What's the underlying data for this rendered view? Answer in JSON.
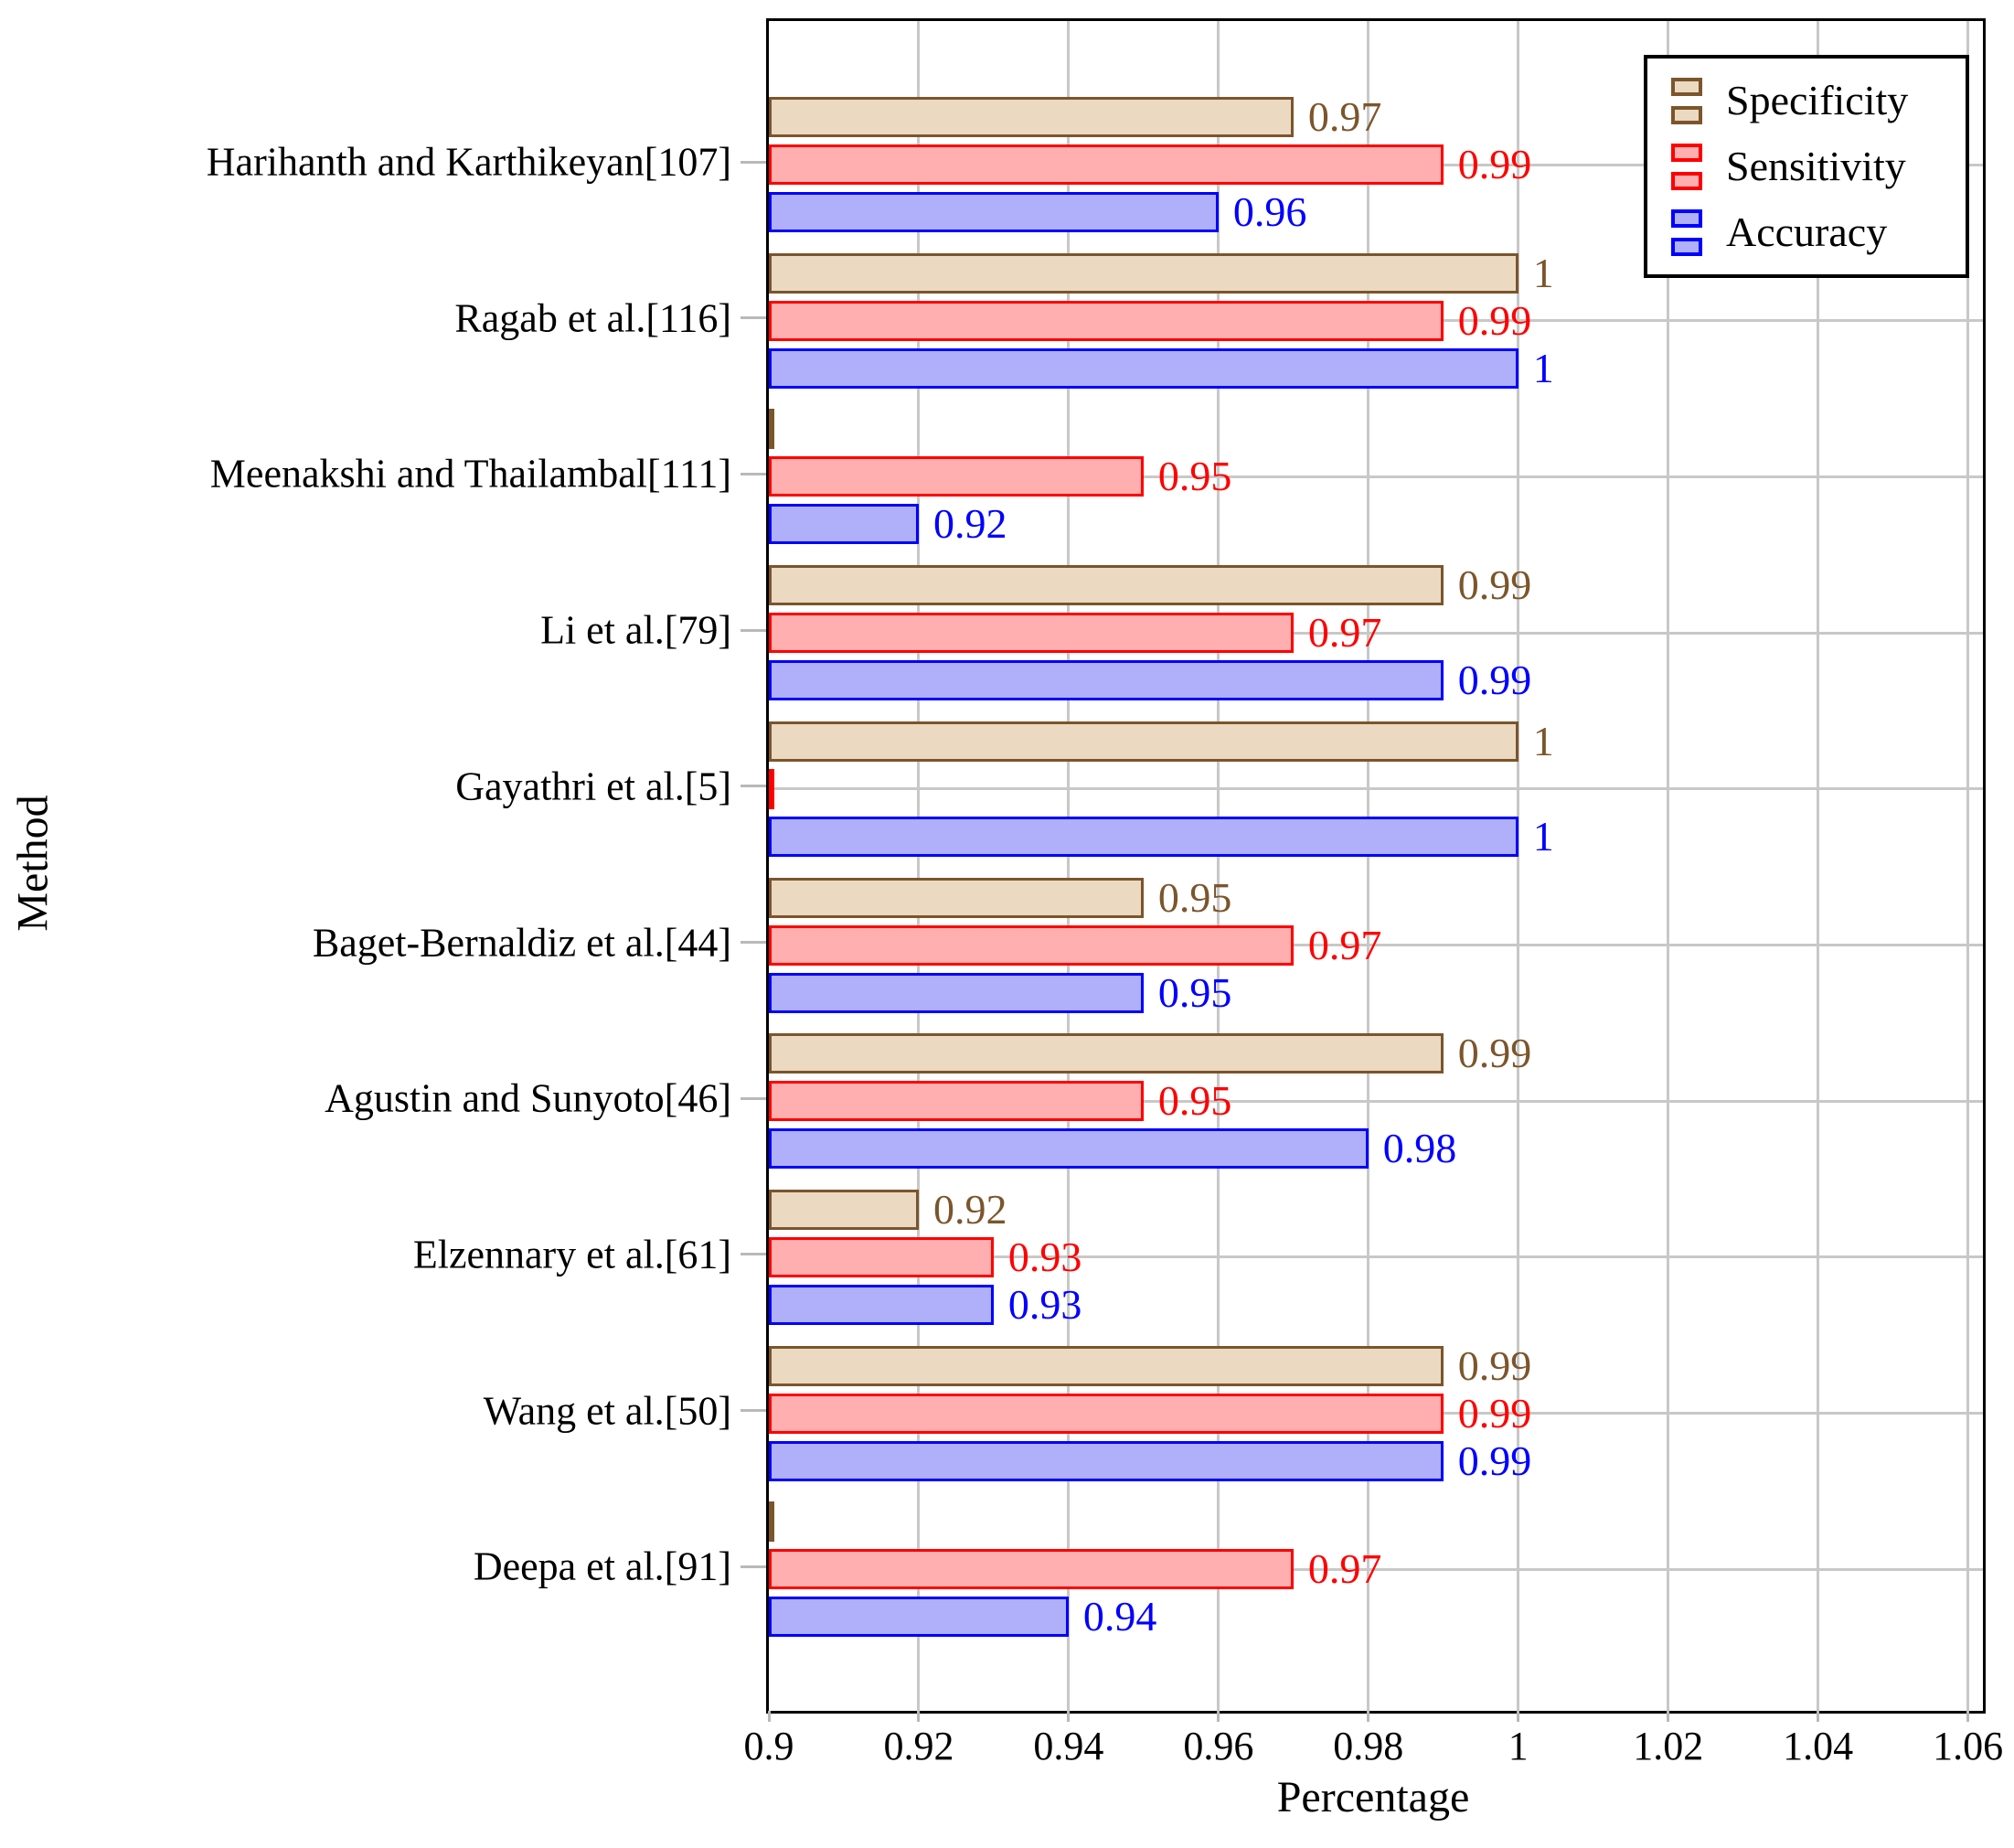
{
  "chart_data": {
    "type": "bar",
    "orientation": "horizontal",
    "title": "",
    "xlabel": "Percentage",
    "ylabel": "Method",
    "xlim": [
      0.9,
      1.06
    ],
    "xticks": [
      "0.9",
      "0.92",
      "0.94",
      "0.96",
      "0.98",
      "1",
      "1.02",
      "1.04",
      "1.06"
    ],
    "grid": "both",
    "grid_color": "#C8C8C8",
    "axis_color": "#000000",
    "legend_position": "top-right",
    "categories": [
      "Harihanth and Karthikeyan[107]",
      "Ragab et al.[116]",
      "Meenakshi and Thailambal[111]",
      "Li et al.[79]",
      "Gayathri et al.[5]",
      "Baget-Bernaldiz et al.[44]",
      "Agustin and Sunyoto[46]",
      "Elzennary et al.[61]",
      "Wang et al.[50]",
      "Deepa et al.[91]"
    ],
    "series": [
      {
        "name": "Specificity",
        "border_color": "#7C552B",
        "fill_color": "#EBD9C2",
        "values": [
          0.97,
          1,
          null,
          0.99,
          1,
          0.95,
          0.99,
          0.92,
          0.99,
          null
        ],
        "labels": [
          "0.97",
          "1",
          "",
          "0.99",
          "1",
          "0.95",
          "0.99",
          "0.92",
          "0.99",
          ""
        ]
      },
      {
        "name": "Sensitivity",
        "border_color": "#FF0000",
        "fill_color": "#FFAFAF",
        "values": [
          0.99,
          0.99,
          0.95,
          0.97,
          null,
          0.97,
          0.95,
          0.93,
          0.99,
          0.97
        ],
        "labels": [
          "0.99",
          "0.99",
          "0.95",
          "0.97",
          "",
          "0.97",
          "0.95",
          "0.93",
          "0.99",
          "0.97"
        ]
      },
      {
        "name": "Accuracy",
        "border_color": "#0000FF",
        "fill_color": "#B0B0FA",
        "values": [
          0.96,
          1,
          0.92,
          0.99,
          1,
          0.95,
          0.98,
          0.93,
          0.99,
          0.94
        ],
        "labels": [
          "0.96",
          "1",
          "0.92",
          "0.99",
          "1",
          "0.95",
          "0.98",
          "0.93",
          "0.99",
          "0.94"
        ]
      }
    ]
  }
}
